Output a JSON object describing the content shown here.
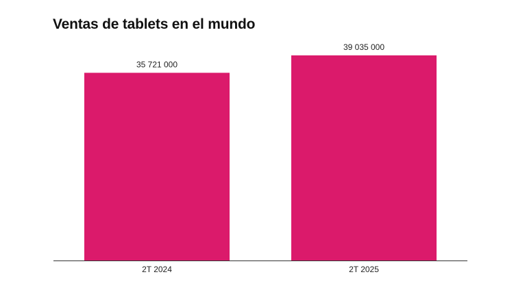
{
  "chart_data": {
    "type": "bar",
    "title": "Ventas de tablets en el mundo",
    "categories": [
      "2T 2024",
      "2T 2025"
    ],
    "values": [
      35721000,
      39035000
    ],
    "value_labels": [
      "35 721 000",
      "39 035 000"
    ],
    "xlabel": "",
    "ylabel": "",
    "ylim": [
      0,
      39035000
    ],
    "grid": false,
    "legend": "none",
    "bar_color": "#db1a6b",
    "axis_color": "#333333"
  }
}
